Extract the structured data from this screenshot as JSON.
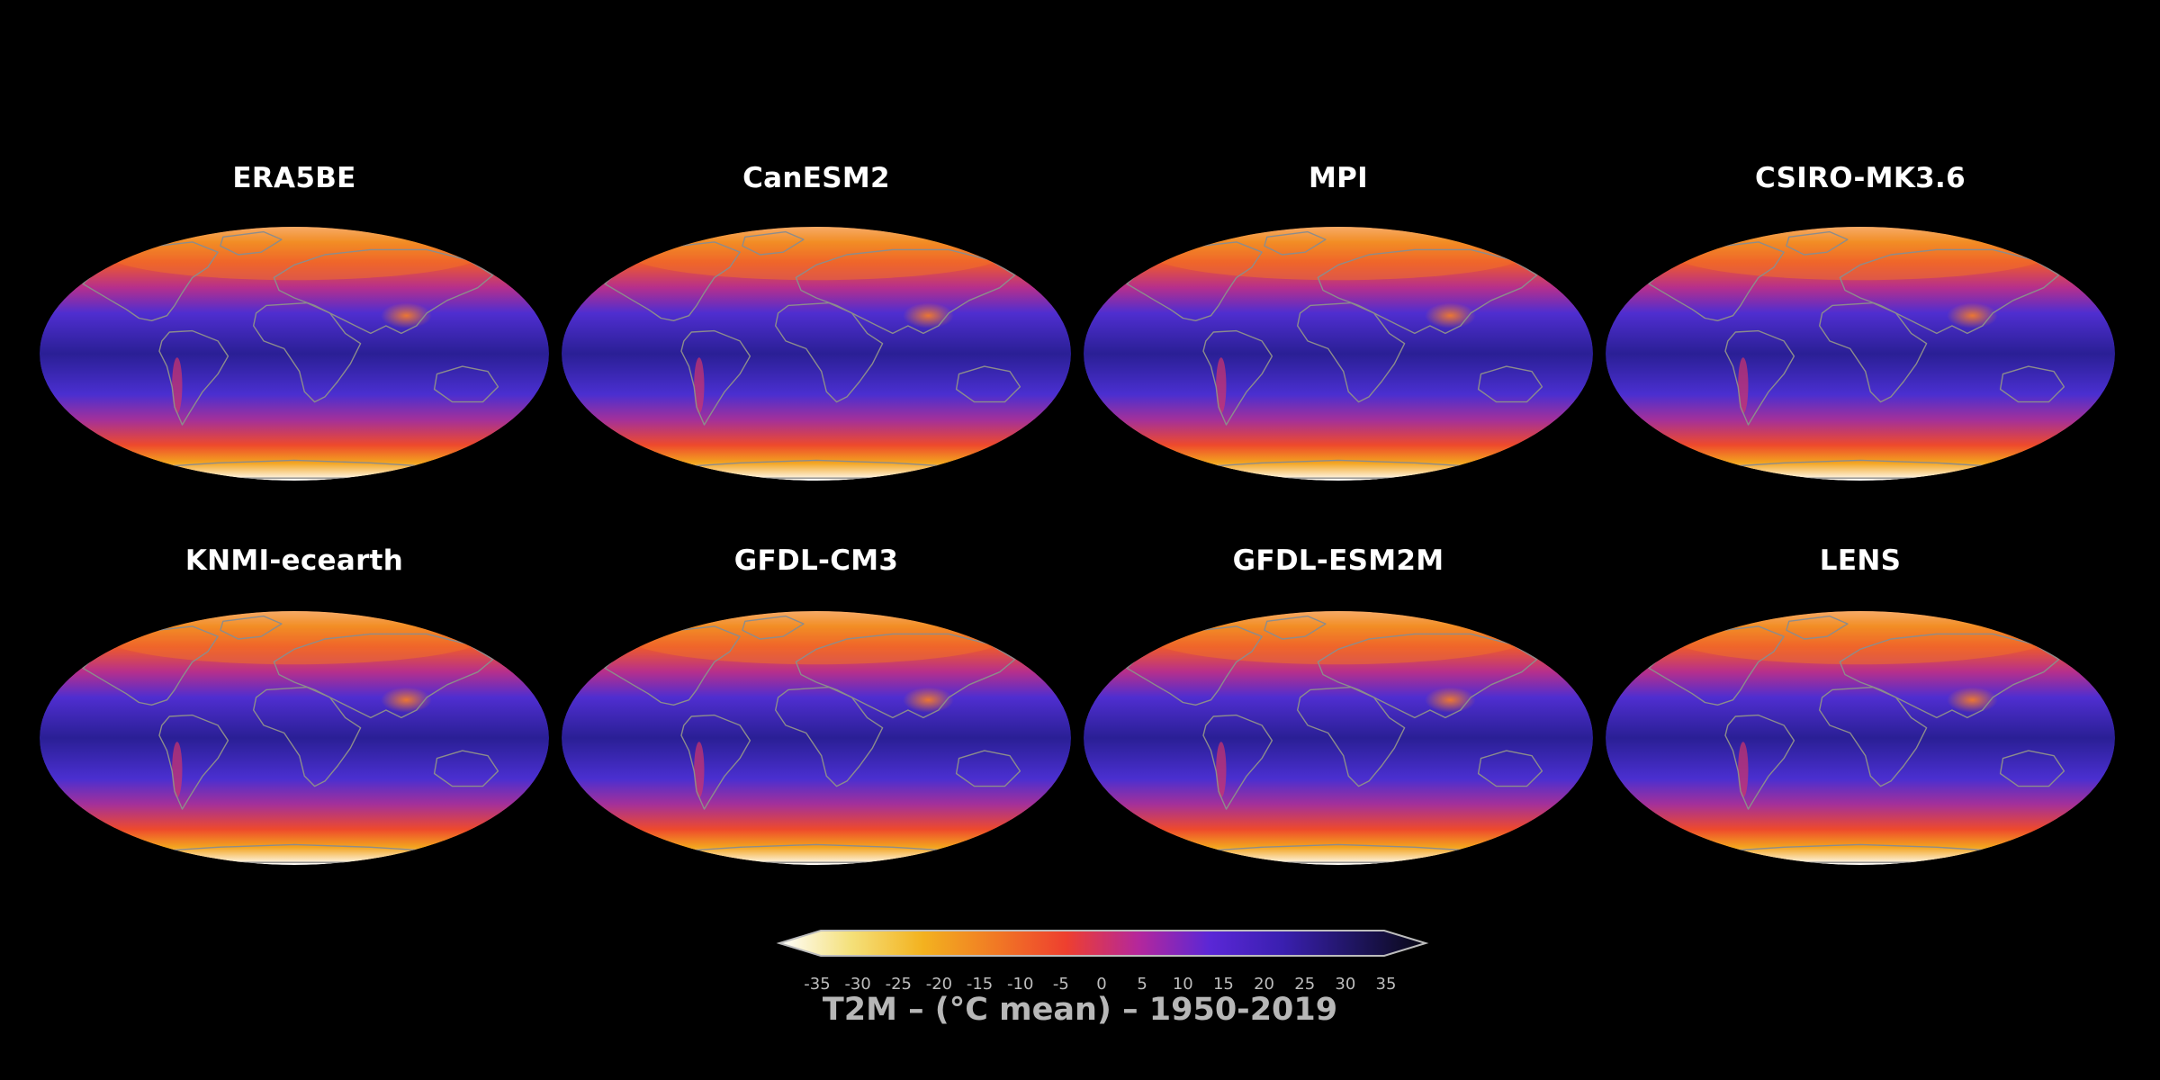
{
  "figure": {
    "panels": [
      {
        "title": "ERA5BE",
        "row": 0,
        "col": 0
      },
      {
        "title": "CanESM2",
        "row": 0,
        "col": 1
      },
      {
        "title": "MPI",
        "row": 0,
        "col": 2
      },
      {
        "title": "CSIRO-MK3.6",
        "row": 0,
        "col": 3
      },
      {
        "title": "KNMI-ecearth",
        "row": 1,
        "col": 0
      },
      {
        "title": "GFDL-CM3",
        "row": 1,
        "col": 1
      },
      {
        "title": "GFDL-ESM2M",
        "row": 1,
        "col": 2
      },
      {
        "title": "LENS",
        "row": 1,
        "col": 3
      }
    ],
    "projection": "mollweide",
    "colorbar": {
      "ticks": [
        "-35",
        "-30",
        "-25",
        "-20",
        "-15",
        "-10",
        "-5",
        "0",
        "5",
        "10",
        "15",
        "20",
        "25",
        "30",
        "35"
      ],
      "min": -35,
      "max": 35,
      "extend": "both",
      "title": "T2M – (°C mean) – 1950-2019",
      "colors": [
        "#ffffff",
        "#f4e07a",
        "#f3b21f",
        "#f17a24",
        "#ee3f2f",
        "#b4279c",
        "#5a27d6",
        "#3a1fb0",
        "#1f1560",
        "#080813"
      ]
    },
    "background_color": "#000000"
  }
}
